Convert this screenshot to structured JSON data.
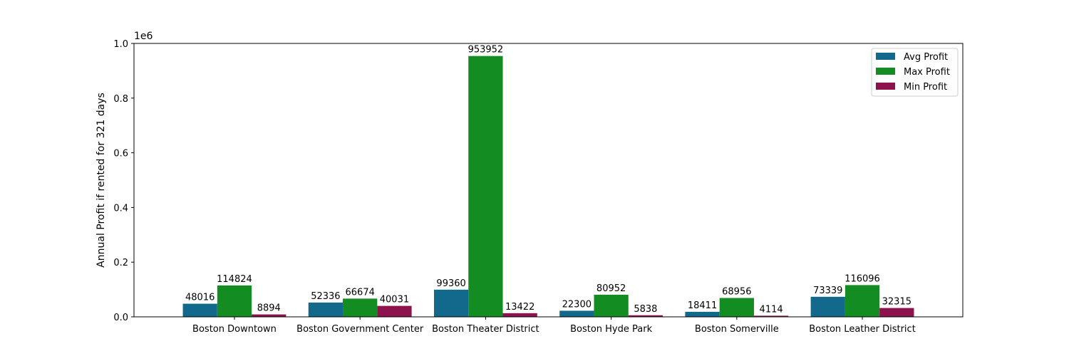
{
  "chart_data": {
    "type": "bar",
    "title": "",
    "xlabel": "",
    "ylabel": "Annual Profit if rented for 321 days",
    "y_offset_text": "1e6",
    "y_scale_factor": 1000000,
    "ylim": [
      0,
      1000000
    ],
    "yticks": [
      0,
      200000,
      400000,
      600000,
      800000,
      1000000
    ],
    "ytick_labels": [
      "0.0",
      "0.2",
      "0.4",
      "0.6",
      "0.8",
      "1.0"
    ],
    "grid": false,
    "legend_position": "top-right",
    "categories": [
      "Boston Downtown",
      "Boston Government Center",
      "Boston Theater District",
      "Boston Hyde Park",
      "Boston Somerville",
      "Boston Leather District"
    ],
    "series": [
      {
        "name": "Avg Profit",
        "color": "#13698c",
        "values": [
          48016,
          52336,
          99360,
          22300,
          18411,
          73339
        ]
      },
      {
        "name": "Max Profit",
        "color": "#138c22",
        "values": [
          114824,
          66674,
          953952,
          80952,
          68956,
          116096
        ]
      },
      {
        "name": "Min Profit",
        "color": "#8c134e",
        "values": [
          8894,
          40031,
          13422,
          5838,
          4114,
          32315
        ]
      }
    ]
  }
}
